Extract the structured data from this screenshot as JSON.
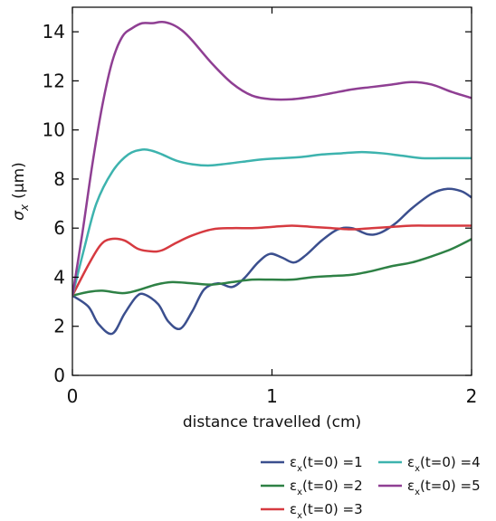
{
  "chart_data": {
    "type": "line",
    "title": "",
    "xlabel": "distance travelled (cm)",
    "ylabel": {
      "symbol": "σ",
      "subscript": "x",
      "unit": "(μm)"
    },
    "xlim": [
      0,
      2
    ],
    "ylim": [
      0,
      15
    ],
    "xticks": [
      "0",
      "1",
      "2"
    ],
    "yticks": [
      "0",
      "2",
      "4",
      "6",
      "8",
      "10",
      "12",
      "14"
    ],
    "grid": false,
    "legend_position": "below-right",
    "series": [
      {
        "name": "ε_x(t=0) =1",
        "legend": {
          "prefix": "ε",
          "sub": "x",
          "suffix": "(t=0) =1"
        },
        "color": "#3b4f8e",
        "x": [
          0,
          0.08,
          0.13,
          0.2,
          0.26,
          0.32,
          0.36,
          0.43,
          0.48,
          0.54,
          0.6,
          0.66,
          0.73,
          0.8,
          0.86,
          0.93,
          0.99,
          1.05,
          1.11,
          1.17,
          1.25,
          1.33,
          1.4,
          1.48,
          1.54,
          1.62,
          1.7,
          1.8,
          1.88,
          1.95,
          2.0
        ],
        "y": [
          3.25,
          2.8,
          2.1,
          1.7,
          2.5,
          3.2,
          3.3,
          2.9,
          2.2,
          1.9,
          2.6,
          3.5,
          3.75,
          3.6,
          3.95,
          4.6,
          4.95,
          4.8,
          4.6,
          4.9,
          5.5,
          5.95,
          6.0,
          5.75,
          5.8,
          6.2,
          6.8,
          7.4,
          7.6,
          7.5,
          7.25
        ]
      },
      {
        "name": "ε_x(t=0) =2",
        "legend": {
          "prefix": "ε",
          "sub": "x",
          "suffix": "(t=0) =2"
        },
        "color": "#2e8145",
        "x": [
          0,
          0.08,
          0.15,
          0.25,
          0.32,
          0.42,
          0.5,
          0.6,
          0.7,
          0.8,
          0.9,
          1.0,
          1.1,
          1.2,
          1.3,
          1.4,
          1.5,
          1.6,
          1.7,
          1.8,
          1.9,
          2.0
        ],
        "y": [
          3.25,
          3.4,
          3.45,
          3.35,
          3.45,
          3.7,
          3.8,
          3.75,
          3.7,
          3.8,
          3.9,
          3.9,
          3.9,
          4.0,
          4.05,
          4.1,
          4.25,
          4.45,
          4.6,
          4.85,
          5.15,
          5.55
        ]
      },
      {
        "name": "ε_x(t=0) =3",
        "legend": {
          "prefix": "ε",
          "sub": "x",
          "suffix": "(t=0) =3"
        },
        "color": "#d63a40",
        "x": [
          0,
          0.08,
          0.14,
          0.19,
          0.26,
          0.33,
          0.4,
          0.45,
          0.52,
          0.6,
          0.7,
          0.8,
          0.9,
          1.0,
          1.1,
          1.2,
          1.3,
          1.4,
          1.5,
          1.6,
          1.7,
          1.8,
          1.9,
          2.0
        ],
        "y": [
          3.25,
          4.5,
          5.3,
          5.55,
          5.5,
          5.15,
          5.05,
          5.1,
          5.4,
          5.7,
          5.95,
          6.0,
          6.0,
          6.05,
          6.1,
          6.05,
          6.0,
          5.95,
          6.0,
          6.05,
          6.1,
          6.1,
          6.1,
          6.1
        ]
      },
      {
        "name": "ε_x(t=0) =4",
        "legend": {
          "prefix": "ε",
          "sub": "x",
          "suffix": "(t=0) =4"
        },
        "color": "#3db3ae",
        "x": [
          0,
          0.06,
          0.12,
          0.2,
          0.28,
          0.35,
          0.4,
          0.45,
          0.52,
          0.6,
          0.68,
          0.75,
          0.85,
          0.95,
          1.05,
          1.15,
          1.25,
          1.35,
          1.45,
          1.55,
          1.65,
          1.75,
          1.85,
          2.0
        ],
        "y": [
          3.25,
          5.2,
          7.0,
          8.3,
          9.0,
          9.2,
          9.15,
          9.0,
          8.75,
          8.6,
          8.55,
          8.6,
          8.7,
          8.8,
          8.85,
          8.9,
          9.0,
          9.05,
          9.1,
          9.05,
          8.95,
          8.85,
          8.85,
          8.85
        ]
      },
      {
        "name": "ε_x(t=0) =5",
        "legend": {
          "prefix": "ε",
          "sub": "x",
          "suffix": "(t=0) =5"
        },
        "color": "#8f3f93",
        "x": [
          0,
          0.05,
          0.1,
          0.15,
          0.2,
          0.25,
          0.3,
          0.35,
          0.4,
          0.45,
          0.5,
          0.55,
          0.6,
          0.7,
          0.8,
          0.9,
          1.0,
          1.1,
          1.2,
          1.3,
          1.4,
          1.5,
          1.6,
          1.7,
          1.8,
          1.9,
          2.0
        ],
        "y": [
          3.25,
          5.8,
          8.6,
          11.0,
          12.8,
          13.8,
          14.15,
          14.35,
          14.35,
          14.4,
          14.3,
          14.05,
          13.65,
          12.7,
          11.9,
          11.4,
          11.25,
          11.25,
          11.35,
          11.5,
          11.65,
          11.75,
          11.85,
          11.95,
          11.85,
          11.55,
          11.3
        ]
      }
    ]
  }
}
